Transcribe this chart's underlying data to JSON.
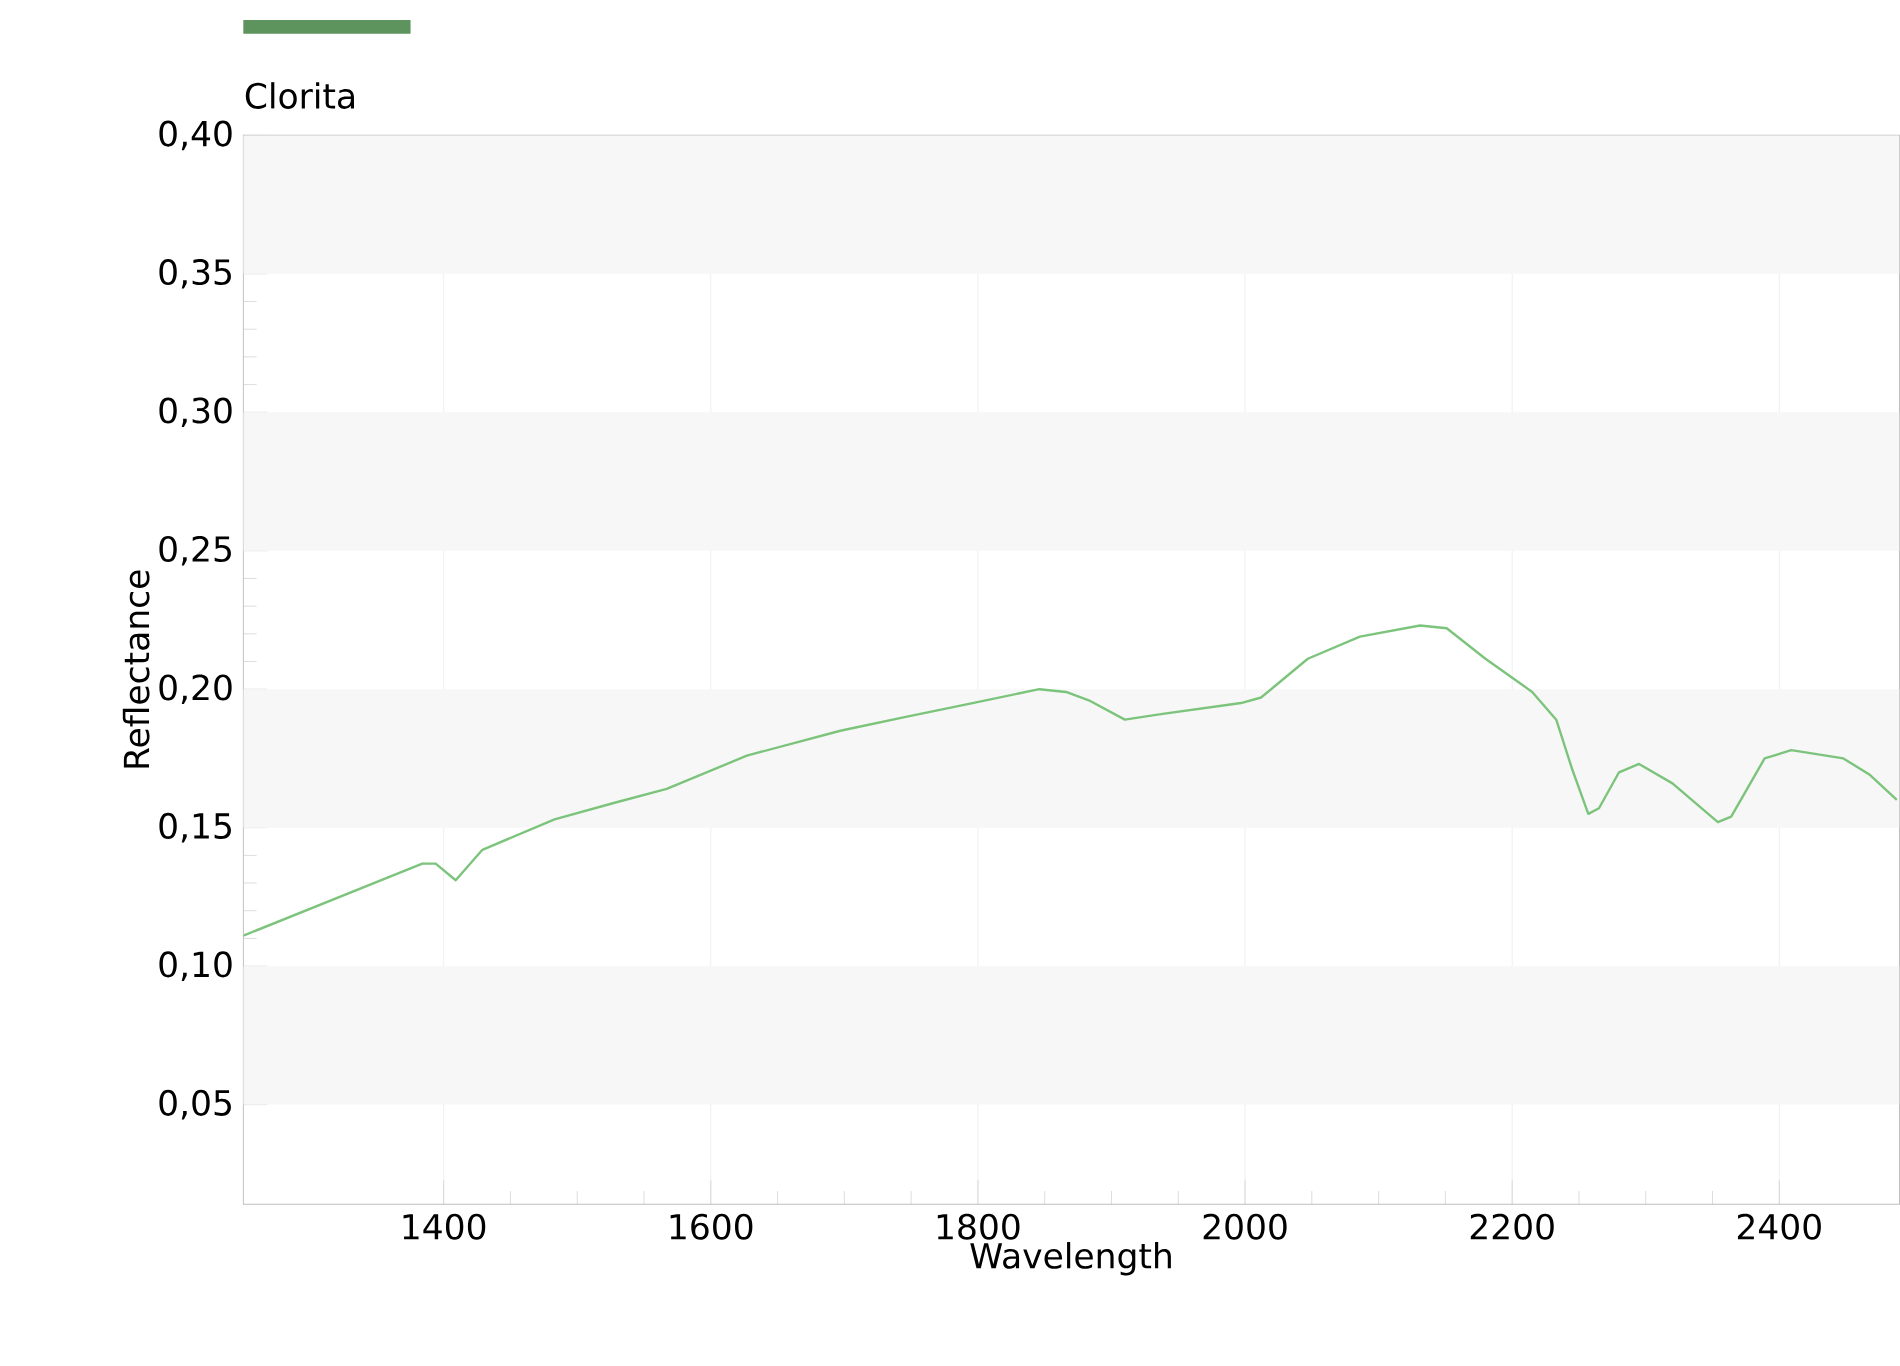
{
  "chart_data": {
    "type": "line",
    "xlabel": "Wavelength",
    "ylabel": "Reflectance",
    "xlim": [
      1250,
      2490
    ],
    "ylim": [
      0.014,
      0.4
    ],
    "xticks": [
      1400,
      1600,
      1800,
      2000,
      2200,
      2400
    ],
    "yticks": [
      {
        "value": 0.05,
        "label": "0,05"
      },
      {
        "value": 0.1,
        "label": "0,10"
      },
      {
        "value": 0.15,
        "label": "0,15"
      },
      {
        "value": 0.2,
        "label": "0,20"
      },
      {
        "value": 0.25,
        "label": "0,25"
      },
      {
        "value": 0.3,
        "label": "0,30"
      },
      {
        "value": 0.35,
        "label": "0,35"
      },
      {
        "value": 0.4,
        "label": "0,40"
      }
    ],
    "grid": true,
    "legend": "top left",
    "marker": "none",
    "line_style": "solid",
    "series": [
      {
        "name": "Clorita",
        "color": "#7cc47c",
        "x": [
          1250,
          1384,
          1394,
          1409,
          1429,
          1483,
          1528,
          1567,
          1627,
          1697,
          1746,
          1796,
          1846,
          1866,
          1883,
          1910,
          1937,
          1997,
          2012,
          2047,
          2086,
          2131,
          2151,
          2180,
          2215,
          2233,
          2245,
          2257,
          2265,
          2280,
          2295,
          2320,
          2354,
          2364,
          2389,
          2409,
          2448,
          2468,
          2488
        ],
        "values": [
          0.111,
          0.137,
          0.137,
          0.131,
          0.142,
          0.153,
          0.159,
          0.164,
          0.176,
          0.185,
          0.19,
          0.195,
          0.2,
          0.199,
          0.196,
          0.189,
          0.191,
          0.195,
          0.197,
          0.211,
          0.219,
          0.223,
          0.222,
          0.211,
          0.199,
          0.189,
          0.171,
          0.155,
          0.157,
          0.17,
          0.173,
          0.166,
          0.152,
          0.154,
          0.175,
          0.178,
          0.175,
          0.169,
          0.16
        ]
      }
    ]
  }
}
